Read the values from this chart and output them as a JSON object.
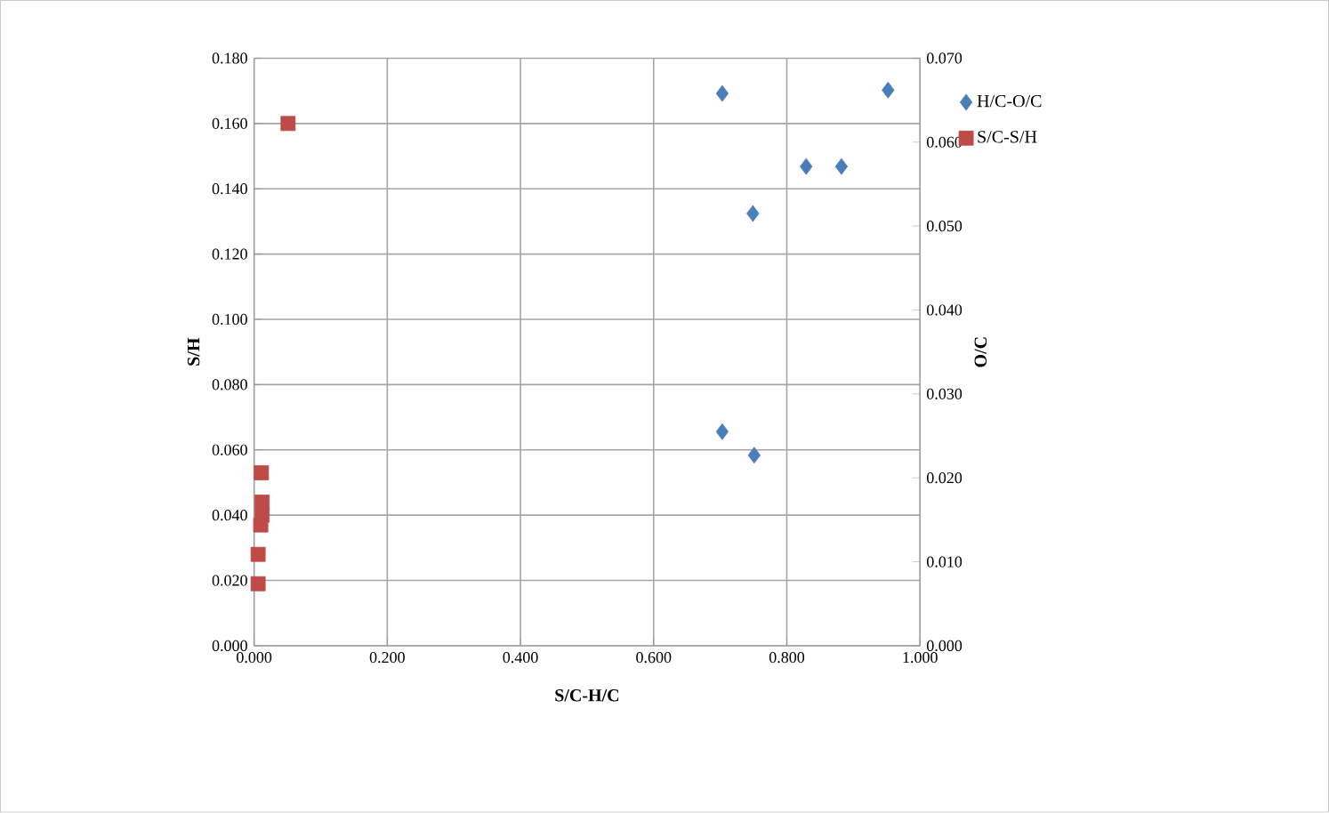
{
  "chart_data": {
    "type": "scatter",
    "xlabel": "S/C-H/C",
    "ylabel": "S/H",
    "y2label": "O/C",
    "xlim": [
      0,
      1
    ],
    "xticks": [
      {
        "value": 0,
        "label": "0.000"
      },
      {
        "value": 0.2,
        "label": "0.200"
      },
      {
        "value": 0.4,
        "label": "0.400"
      },
      {
        "value": 0.6,
        "label": "0.600"
      },
      {
        "value": 0.8,
        "label": "0.800"
      },
      {
        "value": 1.0,
        "label": "1.000"
      }
    ],
    "ylim": [
      0,
      0.18
    ],
    "yticks": [
      {
        "value": 0,
        "label": "0.000"
      },
      {
        "value": 0.02,
        "label": "0.020"
      },
      {
        "value": 0.04,
        "label": "0.040"
      },
      {
        "value": 0.06,
        "label": "0.060"
      },
      {
        "value": 0.08,
        "label": "0.080"
      },
      {
        "value": 0.1,
        "label": "0.100"
      },
      {
        "value": 0.12,
        "label": "0.120"
      },
      {
        "value": 0.14,
        "label": "0.140"
      },
      {
        "value": 0.16,
        "label": "0.160"
      },
      {
        "value": 0.18,
        "label": "0.180"
      }
    ],
    "y2lim": [
      0,
      0.07
    ],
    "y2ticks": [
      {
        "value": 0,
        "label": "0.000"
      },
      {
        "value": 0.01,
        "label": "0.010"
      },
      {
        "value": 0.02,
        "label": "0.020"
      },
      {
        "value": 0.03,
        "label": "0.030"
      },
      {
        "value": 0.04,
        "label": "0.040"
      },
      {
        "value": 0.05,
        "label": "0.050"
      },
      {
        "value": 0.06,
        "label": "0.060"
      },
      {
        "value": 0.07,
        "label": "0.070"
      }
    ],
    "grid": true,
    "legend": "right",
    "series": [
      {
        "name": "H/C-O/C",
        "color": "#4a7ebb",
        "marker": "diamond",
        "axis": "y2",
        "x": [
          0.703,
          0.952,
          0.829,
          0.882,
          0.749,
          0.703,
          0.751
        ],
        "values": [
          0.0658,
          0.0662,
          0.0571,
          0.0571,
          0.0515,
          0.0255,
          0.0227
        ]
      },
      {
        "name": "S/C-S/H",
        "color": "#be4b48",
        "marker": "square",
        "x": [
          0.051,
          0.011,
          0.012,
          0.012,
          0.01,
          0.006,
          0.006
        ],
        "values": [
          0.16,
          0.053,
          0.044,
          0.04,
          0.037,
          0.028,
          0.019
        ]
      }
    ]
  }
}
